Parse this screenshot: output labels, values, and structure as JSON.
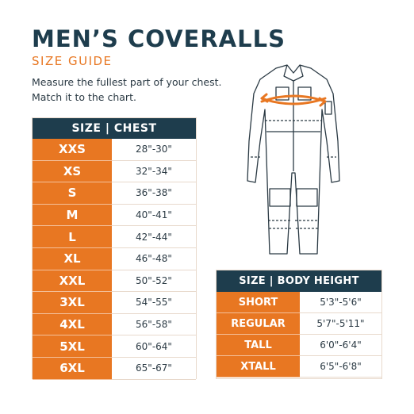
{
  "header": {
    "title": "MEN’S COVERALLS",
    "subtitle": "SIZE GUIDE",
    "instruction_line1": "Measure the fullest part of your chest.",
    "instruction_line2": "Match it to the chart."
  },
  "chest_table": {
    "header": "SIZE | CHEST",
    "rows": [
      {
        "size": "XXS",
        "chest": "28\"-30\""
      },
      {
        "size": "XS",
        "chest": "32\"-34\""
      },
      {
        "size": "S",
        "chest": "36\"-38\""
      },
      {
        "size": "M",
        "chest": "40\"-41\""
      },
      {
        "size": "L",
        "chest": "42\"-44\""
      },
      {
        "size": "XL",
        "chest": "46\"-48\""
      },
      {
        "size": "XXL",
        "chest": "50\"-52\""
      },
      {
        "size": "3XL",
        "chest": "54\"-55\""
      },
      {
        "size": "4XL",
        "chest": "56\"-58\""
      },
      {
        "size": "5XL",
        "chest": "60\"-64\""
      },
      {
        "size": "6XL",
        "chest": "65\"-67\""
      }
    ]
  },
  "height_table": {
    "header": "SIZE | BODY HEIGHT",
    "rows": [
      {
        "size": "SHORT",
        "height": "5'3\"-5'6\""
      },
      {
        "size": "REGULAR",
        "height": "5'7\"-5'11\""
      },
      {
        "size": "TALL",
        "height": "6'0\"-6'4\""
      },
      {
        "size": "XTALL",
        "height": "6'5\"-6'8\""
      }
    ]
  },
  "colors": {
    "navy": "#1e3d4d",
    "orange": "#e87722"
  },
  "illustration": {
    "icon": "coverall-illustration-icon",
    "measure_arrows": "chest-measure-arrows-icon"
  }
}
